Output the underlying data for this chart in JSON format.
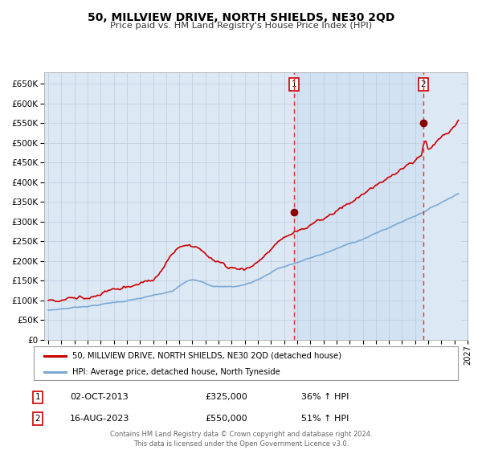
{
  "title": "50, MILLVIEW DRIVE, NORTH SHIELDS, NE30 2QD",
  "subtitle": "Price paid vs. HM Land Registry's House Price Index (HPI)",
  "legend_line1": "50, MILLVIEW DRIVE, NORTH SHIELDS, NE30 2QD (detached house)",
  "legend_line2": "HPI: Average price, detached house, North Tyneside",
  "annotation1_date": "02-OCT-2013",
  "annotation1_price": "£325,000",
  "annotation1_hpi": "36% ↑ HPI",
  "annotation2_date": "16-AUG-2023",
  "annotation2_price": "£550,000",
  "annotation2_hpi": "51% ↑ HPI",
  "footer": "Contains HM Land Registry data © Crown copyright and database right 2024.\nThis data is licensed under the Open Government Licence v3.0.",
  "hpi_color": "#7aaad4",
  "price_color": "#cc0000",
  "marker_color": "#880000",
  "background_plot": "#dde8f5",
  "background_fig": "#ffffff",
  "grid_color": "#c0cfe0",
  "vline_color": "#dd3333",
  "ylim": [
    0,
    680000
  ],
  "yticks": [
    0,
    50000,
    100000,
    150000,
    200000,
    250000,
    300000,
    350000,
    400000,
    450000,
    500000,
    550000,
    600000,
    650000
  ],
  "year_start": 1995,
  "year_end": 2026,
  "sale1_year": 2013.75,
  "sale1_price": 325000,
  "sale2_year": 2023.62,
  "sale2_price": 550000
}
